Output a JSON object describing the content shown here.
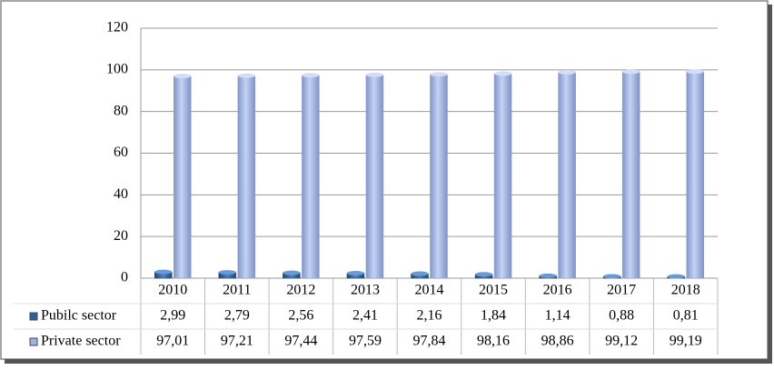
{
  "chart_data": {
    "type": "bar",
    "categories": [
      "2010",
      "2011",
      "2012",
      "2013",
      "2014",
      "2015",
      "2016",
      "2017",
      "2018"
    ],
    "series": [
      {
        "name": "Pubilc sector",
        "color": "#2e5f9a",
        "values": [
          2.99,
          2.79,
          2.56,
          2.41,
          2.16,
          1.84,
          1.14,
          0.88,
          0.81
        ],
        "value_labels": [
          "2,99",
          "2,79",
          "2,56",
          "2,41",
          "2,16",
          "1,84",
          "1,14",
          "0,88",
          "0,81"
        ]
      },
      {
        "name": "Private sector",
        "color": "#9fb3e0",
        "values": [
          97.01,
          97.21,
          97.44,
          97.59,
          97.84,
          98.16,
          98.86,
          99.12,
          99.19
        ],
        "value_labels": [
          "97,01",
          "97,21",
          "97,44",
          "97,59",
          "97,84",
          "98,16",
          "98,86",
          "99,12",
          "99,19"
        ]
      }
    ],
    "ylim": [
      0,
      120
    ],
    "yticks": [
      0,
      20,
      40,
      60,
      80,
      100,
      120
    ],
    "grid": true
  }
}
